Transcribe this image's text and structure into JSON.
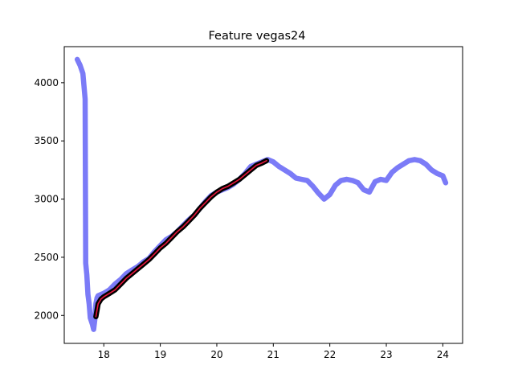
{
  "chart_data": {
    "type": "line",
    "title": "Feature vegas24",
    "xlabel": "",
    "ylabel": "",
    "xlim": [
      17.3,
      24.35
    ],
    "ylim": [
      1760,
      4310
    ],
    "xticks": [
      18,
      19,
      20,
      21,
      22,
      23,
      24
    ],
    "yticks": [
      2000,
      2500,
      3000,
      3500,
      4000
    ],
    "grid": false,
    "legend": "none",
    "series": [
      {
        "color": "#7b7bf7",
        "stroke": "thick",
        "x": [
          17.53,
          17.58,
          17.63,
          17.67,
          17.68,
          17.7,
          17.72,
          17.74,
          17.76,
          17.78,
          17.8,
          17.82,
          17.84,
          17.86,
          17.88,
          17.9,
          17.95,
          18.0,
          18.1,
          18.2,
          18.3,
          18.4,
          18.5,
          18.6,
          18.7,
          18.8,
          18.9,
          19.0,
          19.1,
          19.2,
          19.3,
          19.4,
          19.5,
          19.6,
          19.7,
          19.8,
          19.9,
          20.0,
          20.1,
          20.2,
          20.3,
          20.4,
          20.5,
          20.6,
          20.7,
          20.8,
          20.9,
          21.0,
          21.1,
          21.2,
          21.3,
          21.4,
          21.5,
          21.6,
          21.7,
          21.8,
          21.9,
          22.0,
          22.1,
          22.2,
          22.3,
          22.4,
          22.5,
          22.6,
          22.7,
          22.8,
          22.9,
          23.0,
          23.1,
          23.2,
          23.3,
          23.4,
          23.5,
          23.6,
          23.7,
          23.8,
          23.9,
          24.0,
          24.05
        ],
        "y": [
          4200,
          4150,
          4080,
          3860,
          2450,
          2350,
          2180,
          2100,
          1980,
          1950,
          1920,
          1880,
          1960,
          2100,
          2150,
          2170,
          2180,
          2190,
          2220,
          2270,
          2310,
          2360,
          2390,
          2420,
          2460,
          2490,
          2550,
          2600,
          2650,
          2680,
          2720,
          2770,
          2820,
          2860,
          2920,
          2980,
          3030,
          3060,
          3080,
          3100,
          3130,
          3170,
          3220,
          3280,
          3300,
          3320,
          3340,
          3320,
          3280,
          3250,
          3220,
          3180,
          3170,
          3160,
          3110,
          3050,
          3000,
          3040,
          3120,
          3160,
          3170,
          3160,
          3140,
          3080,
          3060,
          3150,
          3170,
          3160,
          3230,
          3270,
          3300,
          3330,
          3340,
          3330,
          3300,
          3250,
          3220,
          3200,
          3140
        ]
      },
      {
        "color": "#000000",
        "stroke": "thick",
        "x": [
          17.86,
          17.9,
          17.95,
          18.0,
          18.1,
          18.2,
          18.3,
          18.4,
          18.5,
          18.6,
          18.7,
          18.8,
          18.9,
          19.0,
          19.1,
          19.2,
          19.3,
          19.4,
          19.5,
          19.6,
          19.7,
          19.8,
          19.9,
          20.0,
          20.1,
          20.2,
          20.3,
          20.4,
          20.5,
          20.6,
          20.7,
          20.8,
          20.88
        ],
        "y": [
          1990,
          2100,
          2140,
          2160,
          2190,
          2220,
          2270,
          2320,
          2360,
          2400,
          2440,
          2480,
          2530,
          2580,
          2620,
          2670,
          2720,
          2760,
          2810,
          2860,
          2920,
          2970,
          3020,
          3060,
          3090,
          3110,
          3140,
          3170,
          3210,
          3250,
          3290,
          3310,
          3330
        ]
      },
      {
        "color": "#e8163c",
        "stroke": "thin",
        "x": [
          17.86,
          17.9,
          17.95,
          18.0,
          18.1,
          18.2,
          18.3,
          18.4,
          18.5,
          18.6,
          18.7,
          18.8,
          18.9,
          19.0,
          19.1,
          19.2,
          19.3,
          19.4,
          19.5,
          19.6,
          19.7,
          19.8,
          19.9,
          20.0,
          20.1,
          20.2,
          20.3,
          20.4,
          20.5,
          20.6,
          20.7,
          20.8,
          20.88
        ],
        "y": [
          1990,
          2100,
          2140,
          2160,
          2190,
          2220,
          2270,
          2320,
          2360,
          2400,
          2440,
          2480,
          2530,
          2580,
          2620,
          2670,
          2720,
          2760,
          2810,
          2860,
          2920,
          2970,
          3020,
          3060,
          3090,
          3110,
          3140,
          3170,
          3210,
          3250,
          3290,
          3310,
          3330
        ]
      }
    ]
  }
}
